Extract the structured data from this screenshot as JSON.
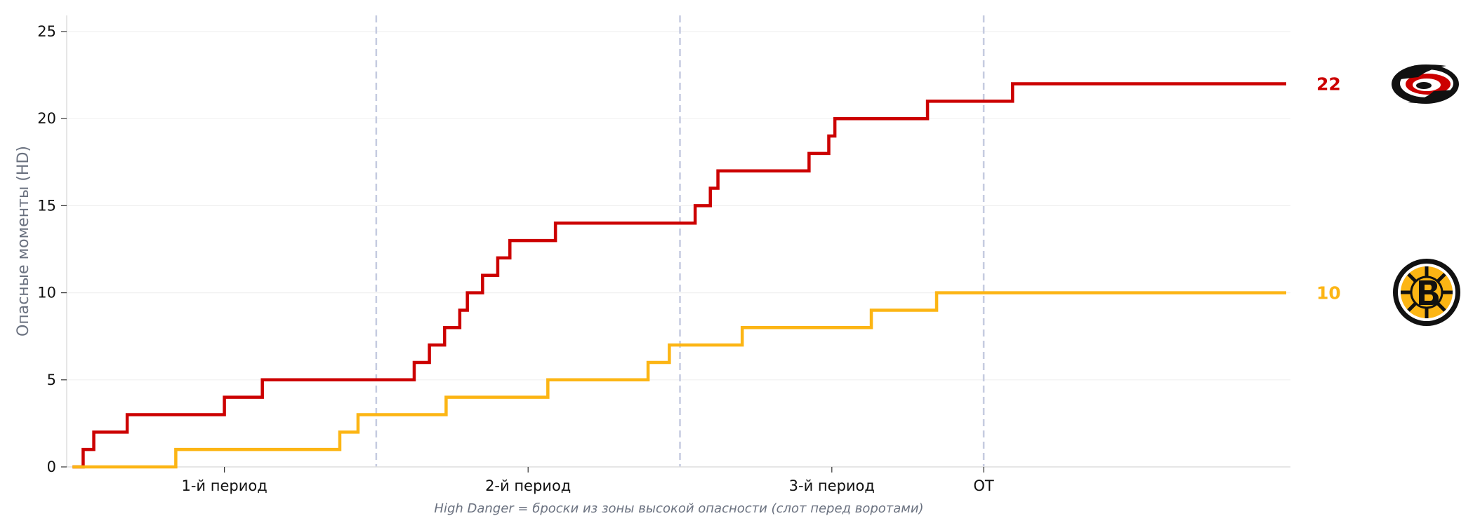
{
  "chart_data": {
    "type": "line",
    "step": true,
    "ylabel": "Опасные моменты (HD)",
    "note": "High Danger = броски из зоны высокой опасности (слот перед воротами)",
    "xlim": [
      0,
      65
    ],
    "ylim": [
      0,
      26
    ],
    "yticks": [
      0,
      5,
      10,
      15,
      20,
      25
    ],
    "grid": "horizontal",
    "periods": [
      {
        "label": "1-й период",
        "x": 10
      },
      {
        "label": "2-й период",
        "x": 30
      },
      {
        "label": "3-й период",
        "x": 50
      },
      {
        "label": "OT",
        "x": 60
      }
    ],
    "period_lines_x": [
      20,
      40,
      60
    ],
    "series": [
      {
        "team": "Carolina Hurricanes",
        "color": "#cc0000",
        "final": "22",
        "logo": "hurricanes-logo",
        "x": [
          0.0,
          0.7,
          1.4,
          3.6,
          10.0,
          12.5,
          22.5,
          23.5,
          24.5,
          25.5,
          26.0,
          27.0,
          28.0,
          28.8,
          31.8,
          41.0,
          42.0,
          42.5,
          48.5,
          49.8,
          50.2,
          56.3,
          61.9,
          80.3
        ],
        "values": [
          0,
          1,
          2,
          3,
          4,
          5,
          6,
          7,
          8,
          9,
          10,
          11,
          12,
          13,
          14,
          15,
          16,
          17,
          18,
          19,
          20,
          21,
          22,
          22
        ]
      },
      {
        "team": "Boston Bruins",
        "color": "#fcb514",
        "final": "10",
        "logo": "bruins-logo",
        "x": [
          0.0,
          6.8,
          17.6,
          18.8,
          24.6,
          31.3,
          37.9,
          39.3,
          44.1,
          52.6,
          56.9,
          80.3
        ],
        "values": [
          0,
          1,
          2,
          3,
          4,
          5,
          6,
          7,
          8,
          9,
          10,
          10
        ]
      }
    ]
  }
}
